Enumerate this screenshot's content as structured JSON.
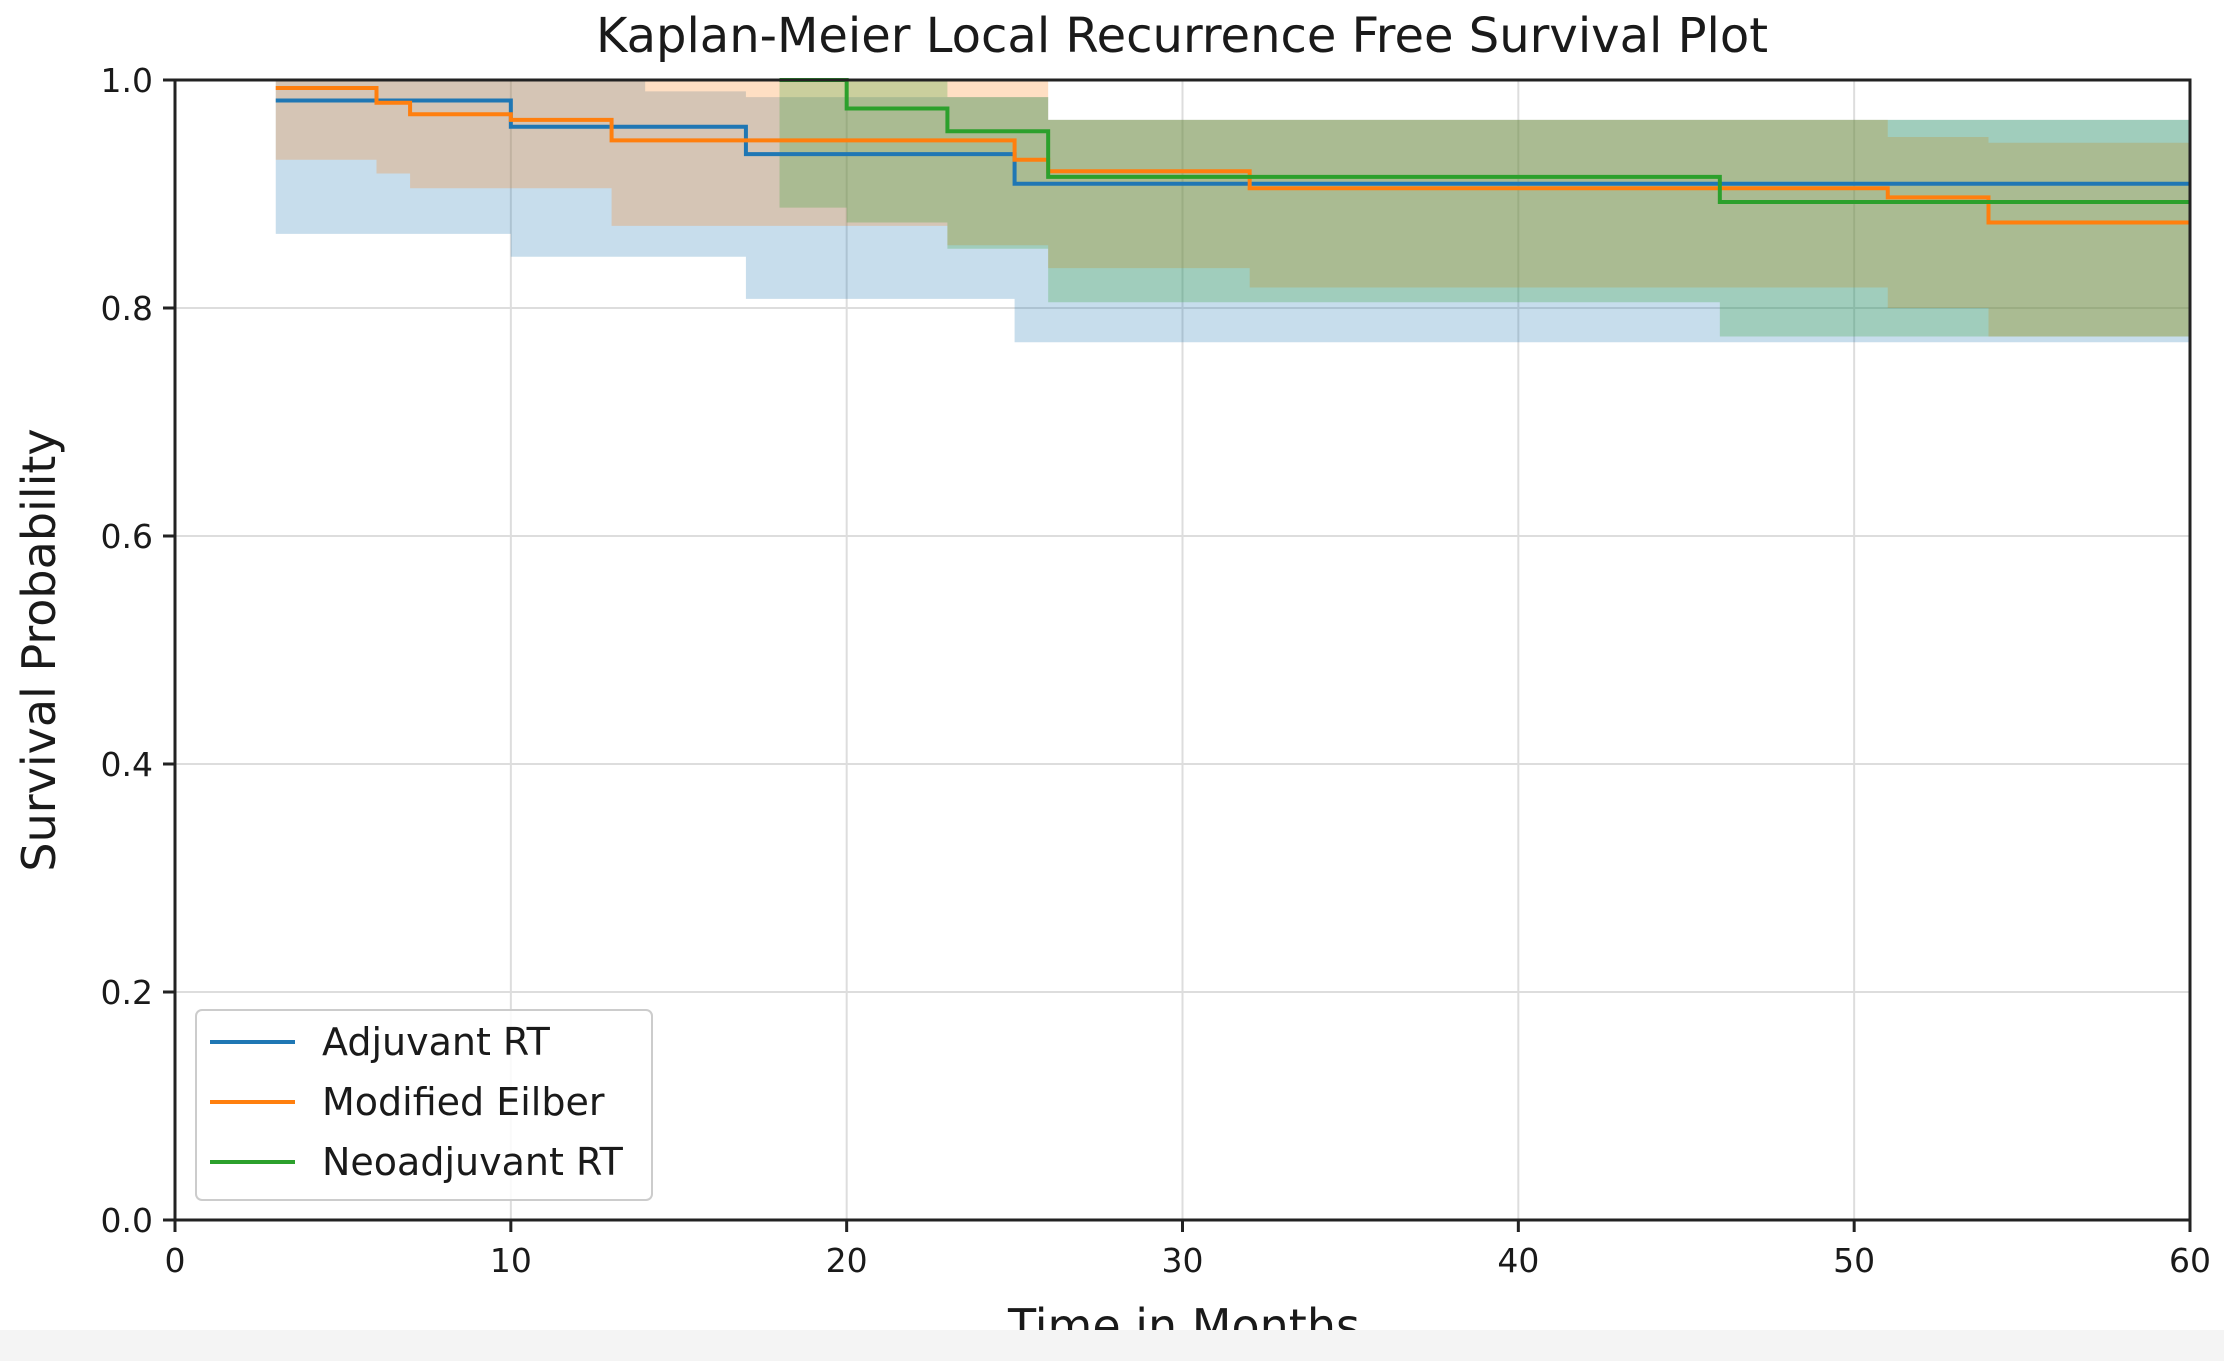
{
  "chart_data": {
    "type": "line",
    "title": "Kaplan-Meier Local Recurrence Free Survival Plot",
    "xlabel": "Time in Months",
    "ylabel": "Survival Probability",
    "xlim": [
      0,
      60
    ],
    "ylim": [
      0,
      1.0
    ],
    "x_ticks": [
      "0",
      "10",
      "20",
      "30",
      "40",
      "50",
      "60"
    ],
    "x_tick_values": [
      0,
      10,
      20,
      30,
      40,
      50,
      60
    ],
    "y_ticks": [
      "0.0",
      "0.2",
      "0.4",
      "0.6",
      "0.8",
      "1.0"
    ],
    "y_tick_values": [
      0,
      0.2,
      0.4,
      0.6,
      0.8,
      1.0
    ],
    "grid": true,
    "legend_position": "lower-left",
    "series": [
      {
        "name": "Adjuvant RT",
        "color": "#1f77b4",
        "steps": [
          [
            3,
            0.982
          ],
          [
            10,
            0.959
          ],
          [
            17,
            0.935
          ],
          [
            25,
            0.909
          ],
          [
            60,
            0.909
          ]
        ],
        "ci_lower": [
          [
            3,
            0.865
          ],
          [
            10,
            0.845
          ],
          [
            17,
            0.808
          ],
          [
            25,
            0.77
          ],
          [
            60,
            0.77
          ]
        ],
        "ci_upper": [
          [
            3,
            1.0
          ],
          [
            14,
            0.99
          ],
          [
            17,
            0.985
          ],
          [
            26,
            0.965
          ],
          [
            60,
            0.965
          ]
        ]
      },
      {
        "name": "Modified Eilber",
        "color": "#ff7f0e",
        "steps": [
          [
            3,
            0.993
          ],
          [
            6,
            0.98
          ],
          [
            7,
            0.97
          ],
          [
            10,
            0.965
          ],
          [
            13,
            0.947
          ],
          [
            25,
            0.93
          ],
          [
            26,
            0.92
          ],
          [
            32,
            0.905
          ],
          [
            51,
            0.897
          ],
          [
            54,
            0.875
          ],
          [
            60,
            0.875
          ]
        ],
        "ci_lower": [
          [
            3,
            0.93
          ],
          [
            6,
            0.918
          ],
          [
            7,
            0.905
          ],
          [
            13,
            0.872
          ],
          [
            23,
            0.855
          ],
          [
            26,
            0.835
          ],
          [
            32,
            0.818
          ],
          [
            51,
            0.8
          ],
          [
            54,
            0.775
          ],
          [
            60,
            0.775
          ]
        ],
        "ci_upper": [
          [
            3,
            1.0
          ],
          [
            26,
            0.965
          ],
          [
            51,
            0.95
          ],
          [
            54,
            0.945
          ],
          [
            60,
            0.945
          ]
        ]
      },
      {
        "name": "Neoadjuvant RT",
        "color": "#2ca02c",
        "steps": [
          [
            18,
            1.0
          ],
          [
            20,
            0.975
          ],
          [
            23,
            0.955
          ],
          [
            26,
            0.915
          ],
          [
            46,
            0.893
          ],
          [
            60,
            0.893
          ]
        ],
        "ci_lower": [
          [
            18,
            0.888
          ],
          [
            20,
            0.875
          ],
          [
            23,
            0.852
          ],
          [
            26,
            0.805
          ],
          [
            46,
            0.775
          ],
          [
            60,
            0.775
          ]
        ],
        "ci_upper": [
          [
            18,
            1.0
          ],
          [
            23,
            0.985
          ],
          [
            26,
            0.965
          ],
          [
            60,
            0.955
          ]
        ]
      }
    ]
  }
}
